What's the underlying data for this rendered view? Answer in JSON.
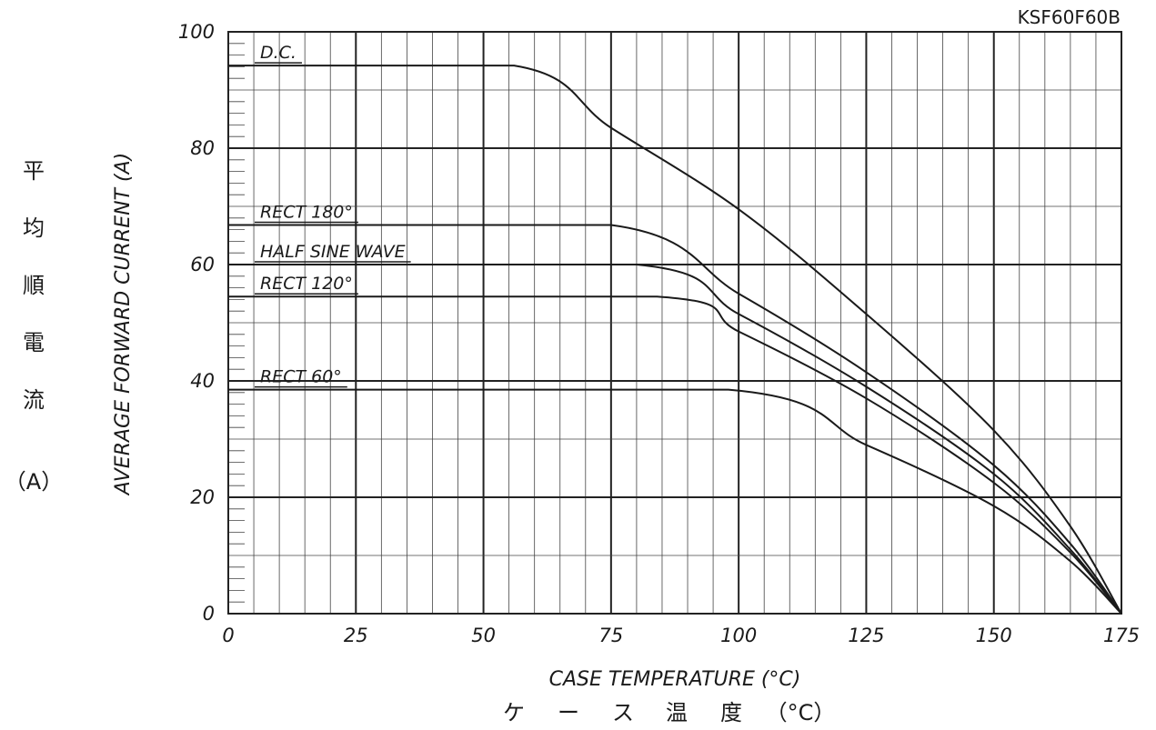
{
  "part_number": "KSF60F60B",
  "y_label_jp": [
    "平",
    "均",
    "順",
    "電",
    "流"
  ],
  "y_unit_jp": "（A）",
  "x_label_jp": [
    "ケ",
    "ー",
    "ス",
    "温",
    "度",
    "（°C）"
  ],
  "chart_data": {
    "type": "line",
    "title": "",
    "xlabel": "CASE TEMPERATURE (°C)",
    "ylabel": "AVERAGE FORWARD CURRENT (A)",
    "xlim": [
      0,
      175
    ],
    "ylim": [
      0,
      100
    ],
    "x_ticks": [
      0,
      25,
      50,
      75,
      100,
      125,
      150,
      175
    ],
    "y_ticks": [
      0,
      20,
      40,
      60,
      80,
      100
    ],
    "grid": true,
    "series": [
      {
        "name": "D.C.",
        "points": [
          [
            0,
            94.2
          ],
          [
            56,
            94.2
          ],
          [
            75,
            83.5
          ],
          [
            100,
            69.5
          ],
          [
            125,
            51.5
          ],
          [
            150,
            31.5
          ],
          [
            165,
            15
          ],
          [
            175,
            0
          ]
        ]
      },
      {
        "name": "RECT 180°",
        "points": [
          [
            0,
            66.8
          ],
          [
            75,
            66.8
          ],
          [
            100,
            55
          ],
          [
            125,
            41.5
          ],
          [
            150,
            25.5
          ],
          [
            165,
            12
          ],
          [
            175,
            0
          ]
        ]
      },
      {
        "name": "HALF SINE WAVE",
        "points": [
          [
            0,
            60
          ],
          [
            80,
            60
          ],
          [
            100,
            51.5
          ],
          [
            125,
            39
          ],
          [
            150,
            24
          ],
          [
            165,
            11
          ],
          [
            175,
            0
          ]
        ]
      },
      {
        "name": "RECT 120°",
        "points": [
          [
            0,
            54.5
          ],
          [
            84,
            54.5
          ],
          [
            100,
            48.5
          ],
          [
            125,
            37
          ],
          [
            150,
            22.5
          ],
          [
            165,
            10.5
          ],
          [
            175,
            0
          ]
        ]
      },
      {
        "name": "RECT 60°",
        "points": [
          [
            0,
            38.5
          ],
          [
            98,
            38.5
          ],
          [
            125,
            29
          ],
          [
            150,
            18.5
          ],
          [
            165,
            9
          ],
          [
            175,
            0
          ]
        ]
      }
    ]
  }
}
